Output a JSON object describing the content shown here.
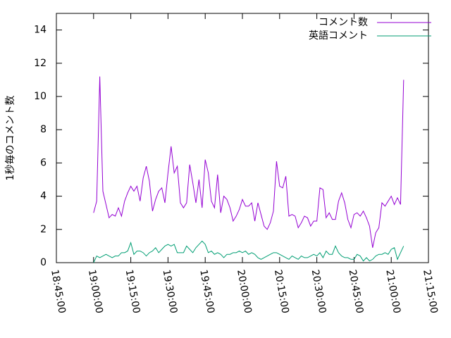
{
  "chart_data": {
    "type": "line",
    "ylabel": "1秒毎のコメント数",
    "xlim": [
      "18:45:00",
      "21:15:00"
    ],
    "xticks": [
      "18:45:00",
      "19:00:00",
      "19:15:00",
      "19:30:00",
      "19:45:00",
      "20:00:00",
      "20:15:00",
      "20:30:00",
      "20:45:00",
      "21:00:00",
      "21:15:00"
    ],
    "ylim": [
      0,
      15
    ],
    "yticks": [
      0,
      2,
      4,
      6,
      8,
      10,
      12,
      14
    ],
    "legend": "top-right",
    "x": [
      "19:00:00",
      "19:01:15",
      "19:02:30",
      "19:03:45",
      "19:05:00",
      "19:06:15",
      "19:07:30",
      "19:08:45",
      "19:10:00",
      "19:11:15",
      "19:12:30",
      "19:13:45",
      "19:15:00",
      "19:16:15",
      "19:17:30",
      "19:18:45",
      "19:20:00",
      "19:21:15",
      "19:22:30",
      "19:23:45",
      "19:25:00",
      "19:26:15",
      "19:27:30",
      "19:28:45",
      "19:30:00",
      "19:31:15",
      "19:32:30",
      "19:33:45",
      "19:35:00",
      "19:36:15",
      "19:37:30",
      "19:38:45",
      "19:40:00",
      "19:41:15",
      "19:42:30",
      "19:43:45",
      "19:45:00",
      "19:46:15",
      "19:47:30",
      "19:48:45",
      "19:50:00",
      "19:51:15",
      "19:52:30",
      "19:53:45",
      "19:55:00",
      "19:56:15",
      "19:57:30",
      "19:58:45",
      "20:00:00",
      "20:01:15",
      "20:02:30",
      "20:03:45",
      "20:05:00",
      "20:06:15",
      "20:07:30",
      "20:08:45",
      "20:10:00",
      "20:11:15",
      "20:12:30",
      "20:13:45",
      "20:15:00",
      "20:16:15",
      "20:17:30",
      "20:18:45",
      "20:20:00",
      "20:21:15",
      "20:22:30",
      "20:23:45",
      "20:25:00",
      "20:26:15",
      "20:27:30",
      "20:28:45",
      "20:30:00",
      "20:31:15",
      "20:32:30",
      "20:33:45",
      "20:35:00",
      "20:36:15",
      "20:37:30",
      "20:38:45",
      "20:40:00",
      "20:41:15",
      "20:42:30",
      "20:43:45",
      "20:45:00",
      "20:46:15",
      "20:47:30",
      "20:48:45",
      "20:50:00",
      "20:51:15",
      "20:52:30",
      "20:53:45",
      "20:55:00",
      "20:56:15",
      "20:57:30",
      "20:58:45",
      "21:00:00",
      "21:01:15",
      "21:02:30",
      "21:03:45",
      "21:05:00"
    ],
    "series": [
      {
        "name": "コメント数",
        "color": "#9400d3",
        "values": [
          3.0,
          3.7,
          11.2,
          4.3,
          3.5,
          2.7,
          2.9,
          2.8,
          3.3,
          2.8,
          3.7,
          4.2,
          4.6,
          4.3,
          4.6,
          3.7,
          5.1,
          5.8,
          4.9,
          3.1,
          3.8,
          4.3,
          4.5,
          3.6,
          5.4,
          7.0,
          5.4,
          5.8,
          3.6,
          3.3,
          3.6,
          5.9,
          4.8,
          3.6,
          5.0,
          3.3,
          6.2,
          5.4,
          3.7,
          3.3,
          5.3,
          3.0,
          4.0,
          3.8,
          3.3,
          2.5,
          2.8,
          3.2,
          3.8,
          3.4,
          3.4,
          3.6,
          2.5,
          3.6,
          2.9,
          2.2,
          2.0,
          2.4,
          3.1,
          6.1,
          4.6,
          4.5,
          5.2,
          2.8,
          2.9,
          2.8,
          2.1,
          2.4,
          2.8,
          2.7,
          2.2,
          2.5,
          2.5,
          4.5,
          4.4,
          2.7,
          3.0,
          2.6,
          2.6,
          3.7,
          4.2,
          3.6,
          2.6,
          2.1,
          2.9,
          3.0,
          2.8,
          3.1,
          2.7,
          2.2,
          0.9,
          1.8,
          2.1,
          3.6,
          3.4,
          3.7,
          4.0,
          3.5,
          3.9,
          3.5,
          11.0
        ]
      },
      {
        "name": "英語コメント",
        "color": "#009e73",
        "values": [
          0,
          0.4,
          0.3,
          0.4,
          0.5,
          0.4,
          0.3,
          0.4,
          0.4,
          0.6,
          0.6,
          0.7,
          1.2,
          0.5,
          0.7,
          0.7,
          0.6,
          0.4,
          0.6,
          0.7,
          0.9,
          0.6,
          0.8,
          1.0,
          1.1,
          1.0,
          1.1,
          0.6,
          0.6,
          0.6,
          1.0,
          0.8,
          0.6,
          0.9,
          1.1,
          1.3,
          1.1,
          0.6,
          0.7,
          0.5,
          0.6,
          0.5,
          0.3,
          0.5,
          0.5,
          0.6,
          0.6,
          0.7,
          0.6,
          0.7,
          0.5,
          0.6,
          0.5,
          0.3,
          0.2,
          0.3,
          0.4,
          0.5,
          0.6,
          0.6,
          0.5,
          0.4,
          0.3,
          0.2,
          0.4,
          0.3,
          0.2,
          0.4,
          0.3,
          0.3,
          0.4,
          0.5,
          0.4,
          0.6,
          0.3,
          0.7,
          0.5,
          0.5,
          1.0,
          0.6,
          0.4,
          0.3,
          0.3,
          0.2,
          0.2,
          0.5,
          0.4,
          0.1,
          0.3,
          0.1,
          0.2,
          0.4,
          0.5,
          0.5,
          0.6,
          0.5,
          0.8,
          0.9,
          0.2,
          0.6,
          1.0
        ]
      }
    ]
  }
}
